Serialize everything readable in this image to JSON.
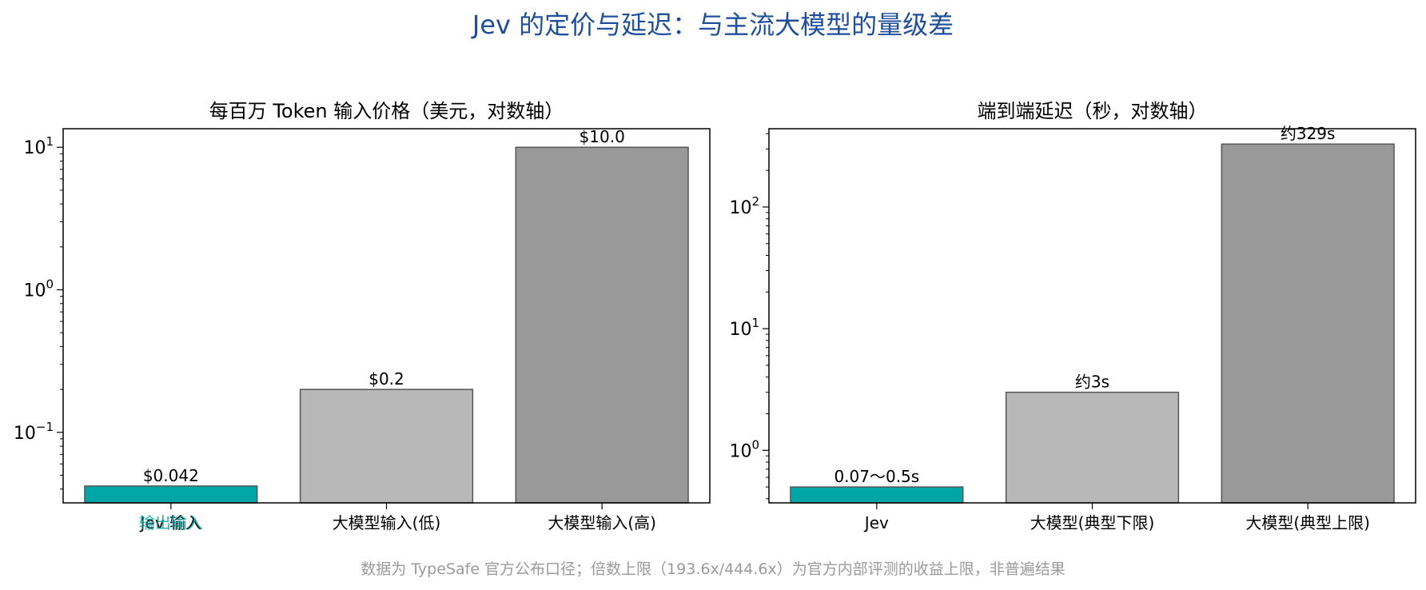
{
  "title": "Jev 的定价与延迟：与主流大模型的量级差",
  "footnote": "数据为 TypeSafe 官方公布口径；倍数上限（193.6x/444.6x）为官方内部评测的收益上限，非普遍结果",
  "colors": {
    "title": "#1f4e9a",
    "accent": "#00a6a6",
    "gray_light": "#b8b8b8",
    "gray_dark": "#999999"
  },
  "chart_data": [
    {
      "type": "bar",
      "title": "每百万 Token 输入价格（美元，对数轴）",
      "yscale": "log",
      "ylim": [
        0.032,
        13.5
      ],
      "categories": [
        "Jev 输入",
        "大模型输入(低)",
        "大模型输入(高)"
      ],
      "overlapping_tick_text": "输出输入",
      "values": [
        0.042,
        0.2,
        10.0
      ],
      "data_labels": [
        "$0.042",
        "$0.2",
        "$10.0"
      ],
      "bar_colors": [
        "#00a6a6",
        "#b8b8b8",
        "#999999"
      ],
      "yticks": [
        {
          "value": 0.1,
          "base": "10",
          "exp": "−1"
        },
        {
          "value": 1,
          "base": "10",
          "exp": "0"
        },
        {
          "value": 10,
          "base": "10",
          "exp": "1"
        }
      ]
    },
    {
      "type": "bar",
      "title": "端到端延迟（秒，对数轴）",
      "yscale": "log",
      "ylim": [
        0.37,
        440
      ],
      "categories": [
        "Jev",
        "大模型(典型下限)",
        "大模型(典型上限)"
      ],
      "values": [
        0.5,
        3,
        329
      ],
      "data_labels": [
        "0.07〜0.5s",
        "约3s",
        "约329s"
      ],
      "bar_colors": [
        "#00a6a6",
        "#b8b8b8",
        "#999999"
      ],
      "yticks": [
        {
          "value": 1,
          "base": "10",
          "exp": "0"
        },
        {
          "value": 10,
          "base": "10",
          "exp": "1"
        },
        {
          "value": 100,
          "base": "10",
          "exp": "2"
        }
      ]
    }
  ]
}
